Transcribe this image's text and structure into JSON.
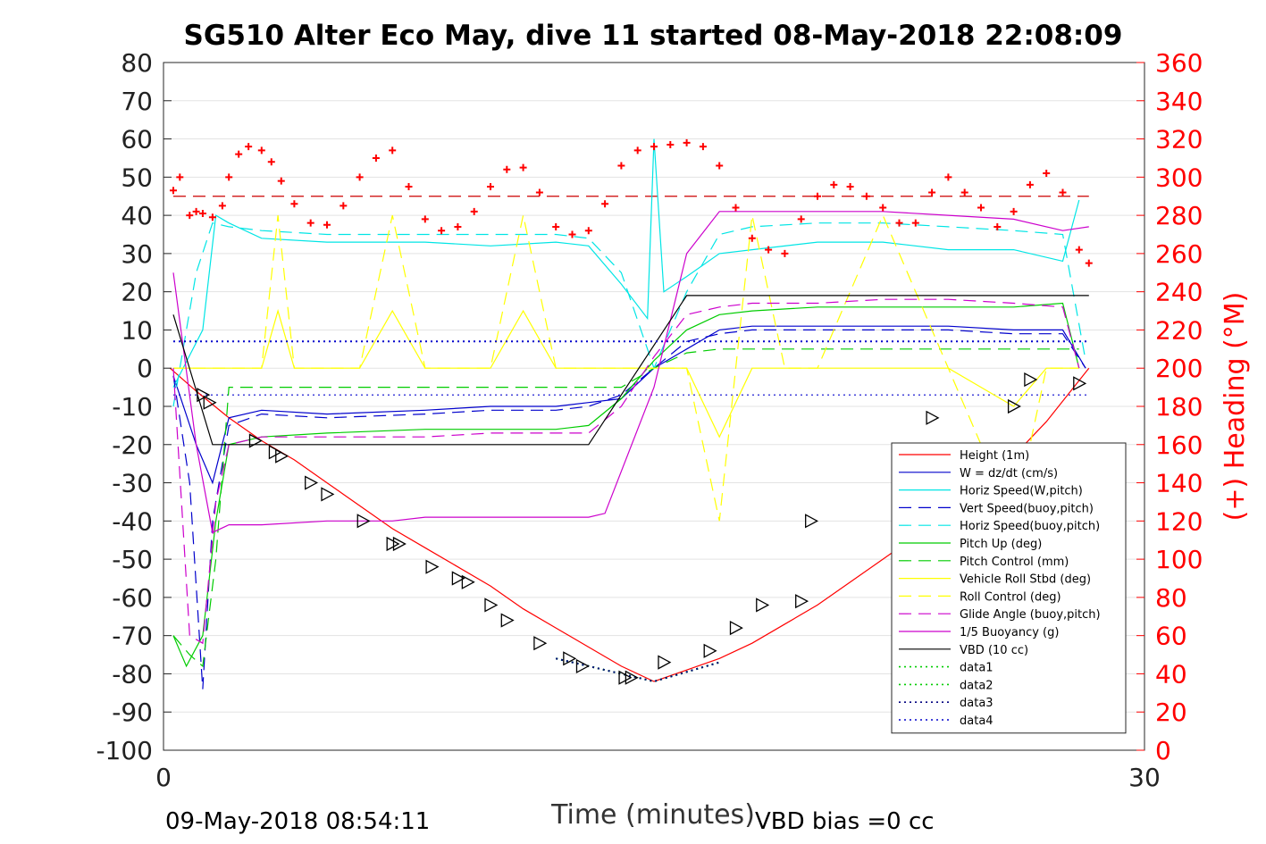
{
  "chart_data": {
    "type": "line",
    "title": "SG510 Alter Eco May, dive 11 started 08-May-2018 22:08:09",
    "xlabel": "Time (minutes)",
    "ylabel_left": "",
    "ylabel_right": "(+) Heading (°M)",
    "xlim": [
      0,
      30
    ],
    "ylim_left": [
      -100,
      80
    ],
    "ylim_right": [
      0,
      360
    ],
    "x_ticks": [
      "0",
      "30"
    ],
    "y_ticks_left": [
      "80",
      "70",
      "60",
      "50",
      "40",
      "30",
      "20",
      "10",
      "0",
      "-10",
      "-20",
      "-30",
      "-40",
      "-50",
      "-60",
      "-70",
      "-80",
      "-90",
      "-100"
    ],
    "y_ticks_right": [
      "360",
      "340",
      "320",
      "300",
      "280",
      "260",
      "240",
      "220",
      "200",
      "180",
      "160",
      "140",
      "120",
      "100",
      "80",
      "60",
      "40",
      "20",
      "0"
    ],
    "grid": true,
    "legend_position": "right-middle",
    "footer_left": "09-May-2018 08:54:11",
    "footer_right": "VBD bias =0 cc",
    "series": [
      {
        "name": "Height (1m)",
        "color": "#ff0000",
        "style": "solid",
        "x": [
          0.2,
          1,
          2,
          3,
          4,
          5,
          6,
          7,
          8,
          9,
          10,
          11,
          12,
          13,
          14,
          15,
          16,
          17,
          18,
          19,
          20,
          21,
          22,
          23,
          24,
          25,
          26,
          27,
          28.3
        ],
        "y": [
          0,
          -6,
          -13,
          -19,
          -24,
          -30,
          -36,
          -42,
          -47,
          -52,
          -57,
          -63,
          -68,
          -73,
          -78,
          -82,
          -79,
          -76,
          -72,
          -67,
          -62,
          -56,
          -50,
          -44,
          -38,
          -31,
          -23,
          -14,
          0
        ]
      },
      {
        "name": "W = dz/dt (cm/s)",
        "color": "#0000cc",
        "style": "solid",
        "x": [
          0.3,
          1,
          1.5,
          2,
          3,
          5,
          8,
          10,
          12,
          13,
          14,
          15,
          16,
          17,
          18,
          20,
          22,
          24,
          26,
          27.5,
          28.2
        ],
        "y": [
          -2,
          -20,
          -30,
          -13,
          -11,
          -12,
          -11,
          -10,
          -10,
          -9,
          -8,
          0,
          5,
          10,
          11,
          11,
          11,
          11,
          10,
          10,
          0
        ]
      },
      {
        "name": "Horiz Speed(W,pitch)",
        "color": "#00e5e5",
        "style": "solid",
        "x": [
          0.3,
          1.2,
          1.6,
          2,
          3,
          5,
          8,
          10,
          12,
          13,
          14,
          14.8,
          15,
          15.3,
          16,
          17,
          18,
          20,
          22,
          24,
          26,
          27.5,
          28
        ],
        "y": [
          -5,
          10,
          40,
          38,
          34,
          33,
          33,
          32,
          33,
          32,
          22,
          13,
          60,
          20,
          24,
          30,
          31,
          33,
          33,
          31,
          31,
          28,
          44
        ]
      },
      {
        "name": "Vert Speed(buoy,pitch)",
        "color": "#0000cc",
        "style": "dashed",
        "x": [
          0.3,
          0.8,
          1.2,
          1.5,
          2,
          3,
          5,
          8,
          10,
          12,
          13,
          14,
          15,
          16,
          17,
          18,
          20,
          22,
          24,
          26,
          27.5,
          28.2
        ],
        "y": [
          -2,
          -30,
          -84,
          -40,
          -15,
          -12,
          -13,
          -12,
          -11,
          -11,
          -10,
          -7,
          0,
          7,
          9,
          10,
          10,
          10,
          10,
          9,
          9,
          0
        ]
      },
      {
        "name": "Horiz Speed(buoy,pitch)",
        "color": "#00e5e5",
        "style": "dashed",
        "x": [
          0.3,
          1,
          1.5,
          2,
          3,
          5,
          8,
          10,
          12,
          13,
          14,
          15,
          16,
          17,
          18,
          20,
          22,
          24,
          26,
          27.5,
          28.2
        ],
        "y": [
          -10,
          25,
          38,
          37,
          36,
          35,
          35,
          35,
          35,
          34,
          25,
          0,
          20,
          35,
          37,
          38,
          38,
          37,
          36,
          35,
          2
        ]
      },
      {
        "name": "Pitch Up (deg)",
        "color": "#00cc00",
        "style": "solid",
        "x": [
          0.3,
          0.7,
          1.2,
          1.6,
          2,
          3,
          5,
          8,
          10,
          12,
          13,
          14,
          15,
          16,
          17,
          18,
          20,
          22,
          24,
          26,
          27.5,
          28
        ],
        "y": [
          -70,
          -78,
          -70,
          -40,
          -20,
          -18,
          -17,
          -16,
          -16,
          -16,
          -15,
          -8,
          2,
          10,
          14,
          15,
          16,
          16,
          16,
          16,
          17,
          0
        ]
      },
      {
        "name": "Pitch Control (mm)",
        "color": "#00cc00",
        "style": "dashed",
        "x": [
          0.3,
          0.8,
          1.2,
          1.6,
          2,
          5,
          10,
          13,
          14,
          15,
          16,
          17,
          20,
          24,
          28
        ],
        "y": [
          -70,
          -75,
          -78,
          -50,
          -5,
          -5,
          -5,
          -5,
          -5,
          0,
          4,
          5,
          5,
          5,
          5
        ]
      },
      {
        "name": "Vehicle Roll Stbd (deg)",
        "color": "#ffff00",
        "style": "solid",
        "x": [
          0.3,
          2,
          3,
          3.5,
          4,
          5,
          6,
          7,
          8,
          9,
          10,
          11,
          12,
          13,
          14,
          15,
          16,
          17,
          18,
          19,
          20,
          22,
          24,
          26,
          27,
          28
        ],
        "y": [
          0,
          0,
          0,
          15,
          0,
          0,
          0,
          15,
          0,
          0,
          0,
          15,
          0,
          0,
          0,
          0,
          0,
          -18,
          0,
          0,
          0,
          0,
          0,
          -10,
          0,
          0
        ]
      },
      {
        "name": "Roll Control (deg)",
        "color": "#ffff00",
        "style": "dashed",
        "x": [
          0.3,
          2,
          3,
          3.5,
          4,
          5,
          6,
          7,
          8,
          9,
          10,
          11,
          12,
          13,
          14,
          15,
          16,
          17,
          18,
          19,
          20,
          22,
          24,
          26,
          27,
          28
        ],
        "y": [
          0,
          0,
          0,
          40,
          0,
          0,
          0,
          40,
          0,
          0,
          0,
          40,
          0,
          0,
          0,
          0,
          0,
          -40,
          40,
          0,
          0,
          40,
          0,
          -40,
          0,
          0
        ]
      },
      {
        "name": "Glide Angle (buoy,pitch)",
        "color": "#cc00cc",
        "style": "dashed",
        "x": [
          0.3,
          0.8,
          1.2,
          1.6,
          2,
          3,
          5,
          8,
          10,
          12,
          13,
          14,
          15,
          16,
          17,
          18,
          20,
          22,
          24,
          26,
          27.5,
          28
        ],
        "y": [
          0,
          -70,
          -72,
          -35,
          -20,
          -18,
          -18,
          -18,
          -17,
          -17,
          -17,
          -10,
          3,
          14,
          16,
          17,
          17,
          18,
          18,
          17,
          16,
          0
        ]
      },
      {
        "name": "1/5 Buoyancy (g)",
        "color": "#cc00cc",
        "style": "solid",
        "x": [
          0.3,
          1,
          1.5,
          2,
          3,
          5,
          7,
          8,
          10,
          12,
          13,
          13.5,
          15,
          16,
          17,
          18,
          20,
          22,
          24,
          26,
          27.5,
          28.3
        ],
        "y": [
          25,
          -20,
          -43,
          -41,
          -41,
          -40,
          -40,
          -39,
          -39,
          -39,
          -39,
          -38,
          -5,
          30,
          41,
          41,
          41,
          41,
          40,
          39,
          36,
          37
        ]
      },
      {
        "name": "VBD (10 cc)",
        "color": "#000000",
        "style": "solid",
        "x": [
          0.3,
          1.5,
          13,
          16,
          28.3
        ],
        "y": [
          14,
          -20,
          -20,
          19,
          19
        ]
      },
      {
        "name": "data1",
        "color": "#00cc00",
        "style": "dotted",
        "x": [
          12,
          15,
          17
        ],
        "y": [
          -76,
          -82,
          -77
        ]
      },
      {
        "name": "data2",
        "color": "#00cc00",
        "style": "dotted",
        "x": [
          12,
          15,
          17
        ],
        "y": [
          -76,
          -82,
          -77
        ]
      },
      {
        "name": "data3",
        "color": "#000080",
        "style": "dotted",
        "x": [
          12,
          15,
          17
        ],
        "y": [
          -76,
          -82,
          -77
        ]
      },
      {
        "name": "data4",
        "color": "#0000cc",
        "style": "dotted",
        "x": [
          0.3,
          28.3
        ],
        "y": [
          7,
          7
        ]
      }
    ],
    "reference_lines": [
      {
        "color": "#0000cc",
        "style": "dotted",
        "y": -7
      },
      {
        "color": "#cc0000",
        "style": "dashed",
        "y_right": 290
      }
    ],
    "heading_points": {
      "color": "#ff0000",
      "marker": "+",
      "axis": "right",
      "x": [
        0.3,
        0.5,
        0.8,
        1,
        1.2,
        1.5,
        1.8,
        2,
        2.3,
        2.6,
        3,
        3.3,
        3.6,
        4,
        4.5,
        5,
        5.5,
        6,
        6.5,
        7,
        7.5,
        8,
        8.5,
        9,
        9.5,
        10,
        10.5,
        11,
        11.5,
        12,
        12.5,
        13,
        13.5,
        14,
        14.5,
        15,
        15.5,
        16,
        16.5,
        17,
        17.5,
        18,
        18.5,
        19,
        19.5,
        20,
        20.5,
        21,
        21.5,
        22,
        22.5,
        23,
        23.5,
        24,
        24.5,
        25,
        25.5,
        26,
        26.5,
        27,
        27.5,
        28,
        28.3
      ],
      "y": [
        293,
        300,
        280,
        282,
        281,
        279,
        285,
        300,
        312,
        316,
        314,
        308,
        298,
        286,
        276,
        275,
        285,
        300,
        310,
        314,
        295,
        278,
        272,
        274,
        282,
        295,
        304,
        305,
        292,
        274,
        270,
        272,
        286,
        306,
        314,
        316,
        317,
        318,
        316,
        306,
        284,
        268,
        262,
        260,
        278,
        290,
        296,
        295,
        290,
        284,
        276,
        276,
        292,
        300,
        292,
        284,
        274,
        282,
        296,
        302,
        292,
        262,
        255
      ]
    },
    "depth_markers": {
      "marker": "triangle",
      "color": "#000000",
      "x": [
        1.2,
        1.4,
        2.8,
        3.4,
        3.6,
        4.5,
        5,
        6.1,
        7,
        7.2,
        8.2,
        9,
        9.3,
        10,
        10.5,
        11.5,
        12.4,
        12.8,
        14.1,
        14.3,
        15.3,
        16.7,
        17.5,
        18.3,
        19.5,
        19.8,
        23,
        23.5,
        26,
        26.5,
        28
      ],
      "y": [
        -7,
        -9,
        -19,
        -22,
        -23,
        -30,
        -33,
        -40,
        -46,
        -46,
        -52,
        -55,
        -56,
        -62,
        -66,
        -72,
        -76,
        -78,
        -81,
        -81,
        -77,
        -74,
        -68,
        -62,
        -61,
        -40,
        -38,
        -13,
        -10,
        -3,
        -4
      ]
    }
  },
  "legend_entries": [
    {
      "label": "Height (1m)",
      "color": "#ff0000",
      "style": "solid"
    },
    {
      "label": "W = dz/dt (cm/s)",
      "color": "#0000cc",
      "style": "solid"
    },
    {
      "label": "Horiz Speed(W,pitch)",
      "color": "#00e5e5",
      "style": "solid"
    },
    {
      "label": "Vert Speed(buoy,pitch)",
      "color": "#0000cc",
      "style": "dashed"
    },
    {
      "label": "Horiz Speed(buoy,pitch)",
      "color": "#00e5e5",
      "style": "dashed"
    },
    {
      "label": "Pitch Up (deg)",
      "color": "#00cc00",
      "style": "solid"
    },
    {
      "label": "Pitch Control (mm)",
      "color": "#00cc00",
      "style": "dashed"
    },
    {
      "label": "Vehicle Roll Stbd (deg)",
      "color": "#ffff00",
      "style": "solid"
    },
    {
      "label": "Roll Control (deg)",
      "color": "#ffff00",
      "style": "dashed"
    },
    {
      "label": "Glide Angle (buoy,pitch)",
      "color": "#cc00cc",
      "style": "dashed"
    },
    {
      "label": "1/5 Buoyancy (g)",
      "color": "#cc00cc",
      "style": "solid"
    },
    {
      "label": "VBD (10 cc)",
      "color": "#000000",
      "style": "solid"
    },
    {
      "label": "data1",
      "color": "#00cc00",
      "style": "dotted"
    },
    {
      "label": "data2",
      "color": "#00cc00",
      "style": "dotted"
    },
    {
      "label": "data3",
      "color": "#000080",
      "style": "dotted"
    },
    {
      "label": "data4",
      "color": "#0000cc",
      "style": "dotted"
    }
  ]
}
